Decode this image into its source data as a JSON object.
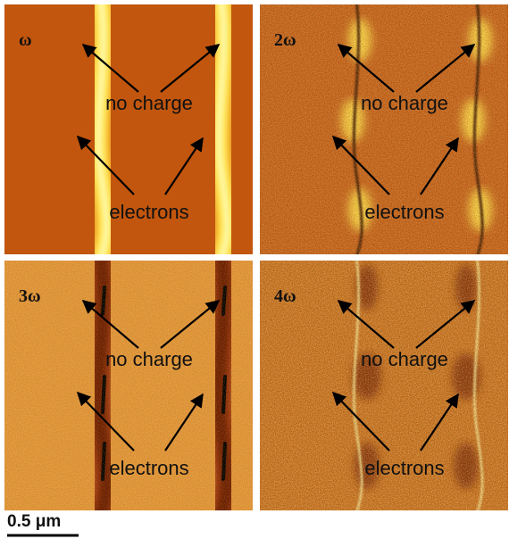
{
  "panels": [
    {
      "label": "ω",
      "annotations": [
        "no charge",
        "electrons"
      ]
    },
    {
      "label": "2ω",
      "annotations": [
        "no charge",
        "electrons"
      ]
    },
    {
      "label": "3ω",
      "annotations": [
        "no charge",
        "electrons"
      ]
    },
    {
      "label": "4ω",
      "annotations": [
        "no charge",
        "electrons"
      ]
    }
  ],
  "scale_bar": "0.5 μm"
}
